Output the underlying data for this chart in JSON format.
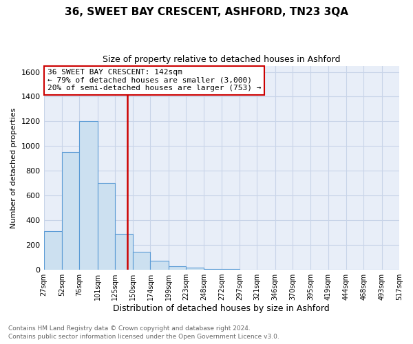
{
  "title": "36, SWEET BAY CRESCENT, ASHFORD, TN23 3QA",
  "subtitle": "Size of property relative to detached houses in Ashford",
  "xlabel": "Distribution of detached houses by size in Ashford",
  "ylabel": "Number of detached properties",
  "footnote1": "Contains HM Land Registry data © Crown copyright and database right 2024.",
  "footnote2": "Contains public sector information licensed under the Open Government Licence v3.0.",
  "property_size": 142,
  "annotation_line1": "36 SWEET BAY CRESCENT: 142sqm",
  "annotation_line2": "← 79% of detached houses are smaller (3,000)",
  "annotation_line3": "20% of semi-detached houses are larger (753) →",
  "bar_color": "#cce0f0",
  "bar_edge_color": "#5b9bd5",
  "line_color": "#cc0000",
  "annotation_box_facecolor": "#ffffff",
  "annotation_box_edge": "#cc0000",
  "grid_color": "#c8d4e8",
  "background_color": "#e8eef8",
  "ylim": [
    0,
    1650
  ],
  "yticks": [
    0,
    200,
    400,
    600,
    800,
    1000,
    1200,
    1400,
    1600
  ],
  "bin_edges": [
    27,
    52,
    76,
    101,
    125,
    150,
    174,
    199,
    223,
    248,
    272,
    297,
    321,
    346,
    370,
    395,
    419,
    444,
    468,
    493,
    517
  ],
  "bin_labels": [
    "27sqm",
    "52sqm",
    "76sqm",
    "101sqm",
    "125sqm",
    "150sqm",
    "174sqm",
    "199sqm",
    "223sqm",
    "248sqm",
    "272sqm",
    "297sqm",
    "321sqm",
    "346sqm",
    "370sqm",
    "395sqm",
    "419sqm",
    "444sqm",
    "468sqm",
    "493sqm",
    "517sqm"
  ],
  "counts": [
    310,
    950,
    1200,
    700,
    290,
    145,
    75,
    30,
    15,
    8,
    5,
    3,
    2,
    1,
    1,
    0,
    0,
    0,
    0,
    0
  ]
}
